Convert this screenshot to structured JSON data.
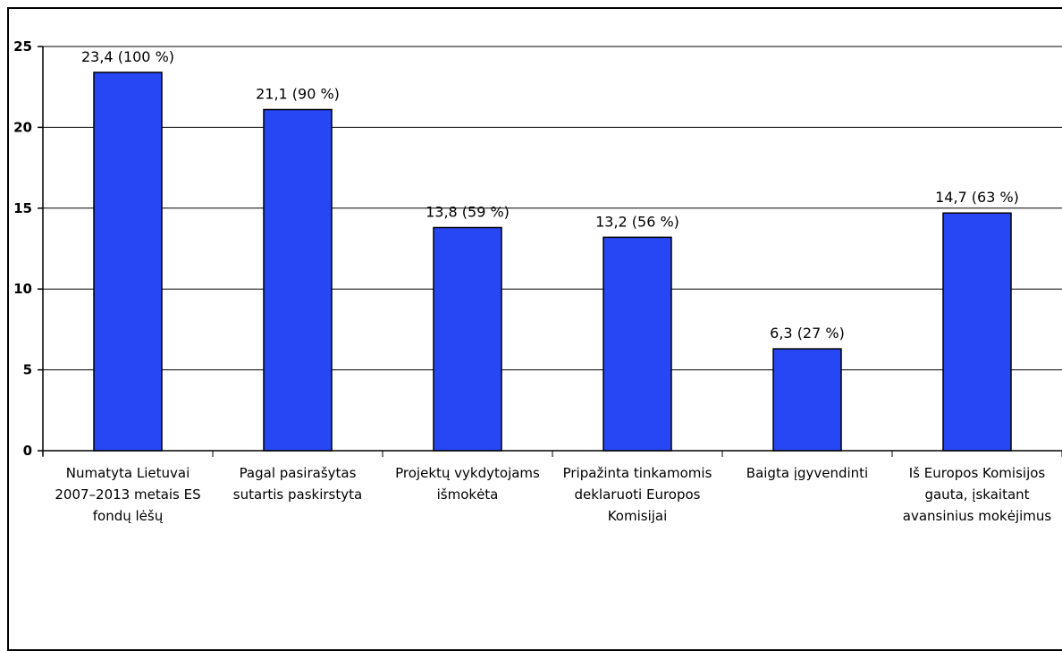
{
  "chart_data": {
    "type": "bar",
    "title": "",
    "xlabel": "",
    "ylabel": "",
    "ylim": [
      0,
      25
    ],
    "yticks": [
      "0",
      "5",
      "10",
      "15",
      "20",
      "25"
    ],
    "grid": true,
    "legend": "none",
    "bar_color": "#2747f5",
    "categories": [
      [
        "Numatyta Lietuvai",
        "2007–2013 metais ES",
        "fondų lėšų"
      ],
      [
        "Pagal pasirašytas",
        "sutartis paskirstyta"
      ],
      [
        "Projektų vykdytojams",
        "išmokėta"
      ],
      [
        "Pripažinta tinkamomis",
        "deklaruoti Europos",
        "Komisijai"
      ],
      [
        "Baigta įgyvendinti"
      ],
      [
        "Iš Europos Komisijos",
        "gauta, įskaitant",
        "avansinius mokėjimus"
      ]
    ],
    "values": [
      23.4,
      21.1,
      13.8,
      13.2,
      6.3,
      14.7
    ],
    "data_labels": [
      "23,4 (100 %)",
      "21,1 (90 %)",
      "13,8 (59 %)",
      "13,2 (56 %)",
      "6,3 (27 %)",
      "14,7 (63 %)"
    ]
  }
}
